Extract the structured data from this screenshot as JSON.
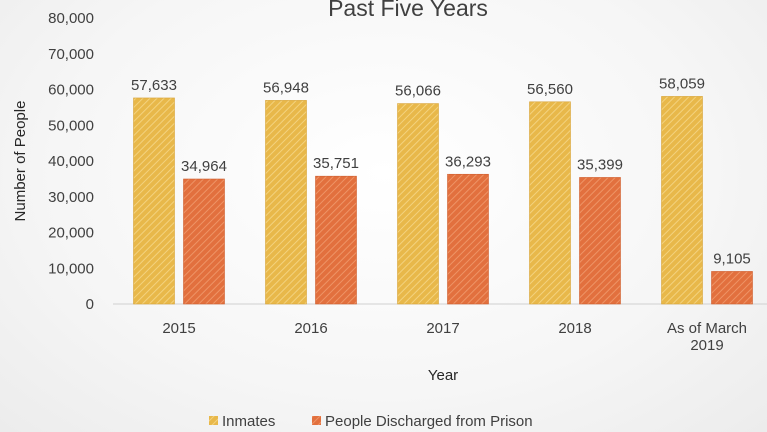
{
  "chart_data": {
    "type": "bar",
    "title": "Past Five Years",
    "xlabel": "Year",
    "ylabel": "Number of People",
    "categories": [
      [
        "2015"
      ],
      [
        "2016"
      ],
      [
        "2017"
      ],
      [
        "2018"
      ],
      [
        "As of March",
        "2019"
      ]
    ],
    "series": [
      {
        "name": "Inmates",
        "color": "#e8b84a",
        "values": [
          57633,
          56948,
          56066,
          56560,
          58059
        ],
        "labels": [
          "57,633",
          "56,948",
          "56,066",
          "56,560",
          "58,059"
        ]
      },
      {
        "name": "People Discharged from Prison",
        "color": "#e2703e",
        "values": [
          34964,
          35751,
          36293,
          35399,
          9105
        ],
        "labels": [
          "34,964",
          "35,751",
          "36,293",
          "35,399",
          "9,105"
        ]
      }
    ],
    "ylim": [
      0,
      80000
    ],
    "yticks": [
      0,
      10000,
      20000,
      30000,
      40000,
      50000,
      60000,
      70000,
      80000
    ],
    "ytick_labels": [
      "0",
      "10,000",
      "20,000",
      "30,000",
      "40,000",
      "50,000",
      "60,000",
      "70,000",
      "80,000"
    ],
    "grid": false,
    "legend": "bottom"
  }
}
